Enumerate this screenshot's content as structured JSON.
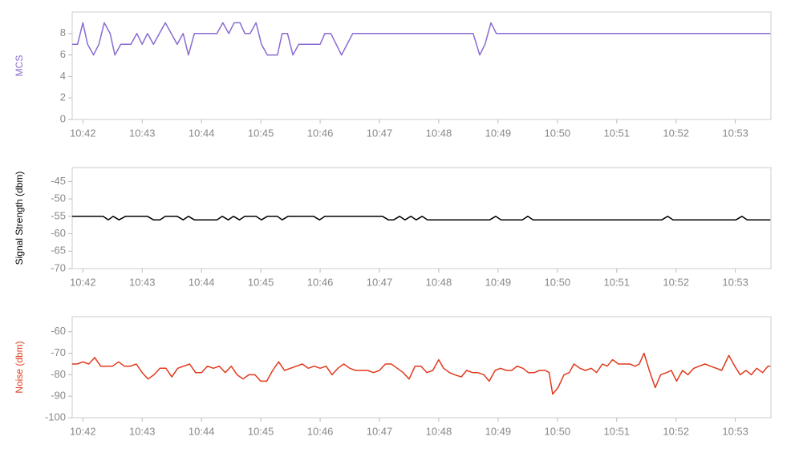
{
  "chart_data": [
    {
      "type": "line",
      "y_label": "MCS",
      "color": "#8a6bd1",
      "x": [
        41.82,
        41.91,
        42.0,
        42.08,
        42.18,
        42.27,
        42.36,
        42.46,
        42.54,
        42.64,
        42.81,
        42.91,
        43.0,
        43.09,
        43.19,
        43.39,
        43.59,
        43.69,
        43.78,
        43.88,
        44.26,
        44.36,
        44.46,
        44.55,
        44.65,
        44.73,
        44.82,
        44.92,
        45.01,
        45.11,
        45.28,
        45.36,
        45.45,
        45.54,
        45.64,
        46.0,
        46.08,
        46.18,
        46.36,
        46.55,
        48.58,
        48.69,
        48.78,
        48.88,
        48.97,
        53.59
      ],
      "values": [
        7,
        7,
        9,
        7,
        6,
        7,
        9,
        8,
        6,
        7,
        7,
        8,
        7,
        8,
        7,
        9,
        7,
        8,
        6,
        8,
        8,
        9,
        8,
        9,
        9,
        8,
        8,
        9,
        7,
        6,
        6,
        8,
        8,
        6,
        7,
        7,
        8,
        8,
        6,
        8,
        8,
        6,
        7,
        9,
        8,
        8
      ],
      "xlim": [
        41.82,
        53.6
      ],
      "xticks": [
        {
          "value": 42,
          "label": "10:42"
        },
        {
          "value": 43,
          "label": "10:43"
        },
        {
          "value": 44,
          "label": "10:44"
        },
        {
          "value": 45,
          "label": "10:45"
        },
        {
          "value": 46,
          "label": "10:46"
        },
        {
          "value": 47,
          "label": "10:47"
        },
        {
          "value": 48,
          "label": "10:48"
        },
        {
          "value": 49,
          "label": "10:49"
        },
        {
          "value": 50,
          "label": "10:50"
        },
        {
          "value": 51,
          "label": "10:51"
        },
        {
          "value": 52,
          "label": "10:52"
        },
        {
          "value": 53,
          "label": "10:53"
        }
      ],
      "ylim": [
        0,
        10
      ],
      "yticks": [
        0,
        2,
        4,
        6,
        8
      ]
    },
    {
      "type": "line",
      "y_label": "Signal Strength (dbm)",
      "color": "#000000",
      "x": [
        41.82,
        42.34,
        42.43,
        42.51,
        42.61,
        42.72,
        43.09,
        43.19,
        43.3,
        43.39,
        43.59,
        43.69,
        43.78,
        43.88,
        44.26,
        44.35,
        44.45,
        44.54,
        44.64,
        44.73,
        44.92,
        45.01,
        45.11,
        45.28,
        45.36,
        45.46,
        45.89,
        45.99,
        46.08,
        47.05,
        47.15,
        47.24,
        47.34,
        47.43,
        47.53,
        47.62,
        47.72,
        47.81,
        48.86,
        48.96,
        49.05,
        49.41,
        49.5,
        49.59,
        51.76,
        51.86,
        51.95,
        53.01,
        53.11,
        53.2,
        53.59
      ],
      "values": [
        -55,
        -55,
        -56,
        -55,
        -56,
        -55,
        -55,
        -56,
        -56,
        -55,
        -55,
        -56,
        -55,
        -56,
        -56,
        -55,
        -56,
        -55,
        -56,
        -55,
        -55,
        -56,
        -55,
        -55,
        -56,
        -55,
        -55,
        -56,
        -55,
        -55,
        -56,
        -56,
        -55,
        -56,
        -55,
        -56,
        -55,
        -56,
        -56,
        -55,
        -56,
        -56,
        -55,
        -56,
        -56,
        -55,
        -56,
        -56,
        -55,
        -56,
        -56
      ],
      "xlim": [
        41.82,
        53.6
      ],
      "xticks": [
        {
          "value": 42,
          "label": "10:42"
        },
        {
          "value": 43,
          "label": "10:43"
        },
        {
          "value": 44,
          "label": "10:44"
        },
        {
          "value": 45,
          "label": "10:45"
        },
        {
          "value": 46,
          "label": "10:46"
        },
        {
          "value": 47,
          "label": "10:47"
        },
        {
          "value": 48,
          "label": "10:48"
        },
        {
          "value": 49,
          "label": "10:49"
        },
        {
          "value": 50,
          "label": "10:50"
        },
        {
          "value": 51,
          "label": "10:51"
        },
        {
          "value": 52,
          "label": "10:52"
        },
        {
          "value": 53,
          "label": "10:53"
        }
      ],
      "ylim": [
        -70,
        -41
      ],
      "yticks": [
        -70,
        -65,
        -60,
        -55,
        -50,
        -45
      ]
    },
    {
      "type": "line",
      "y_label": "Noise (dbm)",
      "color": "#e0391c",
      "x": [
        41.82,
        41.9,
        42.0,
        42.1,
        42.2,
        42.3,
        42.4,
        42.5,
        42.6,
        42.7,
        42.8,
        42.9,
        43.0,
        43.1,
        43.2,
        43.3,
        43.4,
        43.5,
        43.6,
        43.7,
        43.8,
        43.9,
        44.0,
        44.1,
        44.2,
        44.3,
        44.4,
        44.5,
        44.6,
        44.7,
        44.8,
        44.9,
        45.0,
        45.1,
        45.2,
        45.3,
        45.4,
        45.5,
        45.6,
        45.7,
        45.8,
        45.9,
        46.0,
        46.1,
        46.2,
        46.3,
        46.4,
        46.5,
        46.6,
        46.7,
        46.8,
        46.9,
        47.0,
        47.1,
        47.2,
        47.3,
        47.4,
        47.5,
        47.6,
        47.7,
        47.8,
        47.9,
        48.0,
        48.08,
        48.18,
        48.27,
        48.38,
        48.47,
        48.57,
        48.66,
        48.76,
        48.85,
        48.95,
        49.04,
        49.14,
        49.23,
        49.32,
        49.42,
        49.51,
        49.61,
        49.7,
        49.8,
        49.86,
        49.92,
        50.01,
        50.11,
        50.2,
        50.28,
        50.38,
        50.47,
        50.57,
        50.66,
        50.76,
        50.84,
        50.93,
        51.03,
        51.12,
        51.22,
        51.31,
        51.38,
        51.46,
        51.55,
        51.65,
        51.74,
        51.84,
        51.92,
        52.01,
        52.11,
        52.2,
        52.3,
        52.39,
        52.49,
        52.58,
        52.68,
        52.77,
        52.89,
        52.99,
        53.08,
        53.18,
        53.27,
        53.36,
        53.46,
        53.55,
        53.59
      ],
      "values": [
        -75,
        -75,
        -74,
        -75,
        -72,
        -76,
        -76,
        -76,
        -74,
        -76,
        -76,
        -75,
        -79,
        -82,
        -80,
        -77,
        -77,
        -81,
        -77,
        -76,
        -75,
        -79,
        -79,
        -76,
        -77,
        -76,
        -79,
        -76,
        -80,
        -82,
        -80,
        -80,
        -83,
        -83,
        -78,
        -74,
        -78,
        -77,
        -76,
        -75,
        -77,
        -76,
        -77,
        -76,
        -80,
        -77,
        -75,
        -77,
        -78,
        -78,
        -78,
        -79,
        -78,
        -75,
        -75,
        -77,
        -79,
        -82,
        -76,
        -76,
        -79,
        -78,
        -73,
        -77,
        -79,
        -80,
        -81,
        -78,
        -79,
        -79,
        -80,
        -83,
        -78,
        -77,
        -78,
        -78,
        -76,
        -77,
        -79,
        -79,
        -78,
        -78,
        -79,
        -89,
        -86,
        -80,
        -79,
        -75,
        -77,
        -78,
        -77,
        -79,
        -75,
        -76,
        -73,
        -75,
        -75,
        -75,
        -76,
        -75,
        -70,
        -78,
        -86,
        -80,
        -79,
        -78,
        -83,
        -78,
        -80,
        -77,
        -76,
        -75,
        -76,
        -77,
        -78,
        -71,
        -76,
        -80,
        -78,
        -80,
        -77,
        -79,
        -76,
        -76
      ],
      "xlim": [
        41.82,
        53.6
      ],
      "xticks": [
        {
          "value": 42,
          "label": "10:42"
        },
        {
          "value": 43,
          "label": "10:43"
        },
        {
          "value": 44,
          "label": "10:44"
        },
        {
          "value": 45,
          "label": "10:45"
        },
        {
          "value": 46,
          "label": "10:46"
        },
        {
          "value": 47,
          "label": "10:47"
        },
        {
          "value": 48,
          "label": "10:48"
        },
        {
          "value": 49,
          "label": "10:49"
        },
        {
          "value": 50,
          "label": "10:50"
        },
        {
          "value": 51,
          "label": "10:51"
        },
        {
          "value": 52,
          "label": "10:52"
        },
        {
          "value": 53,
          "label": "10:53"
        }
      ],
      "ylim": [
        -100,
        -53
      ],
      "yticks": [
        -100,
        -90,
        -80,
        -70,
        -60
      ]
    }
  ]
}
